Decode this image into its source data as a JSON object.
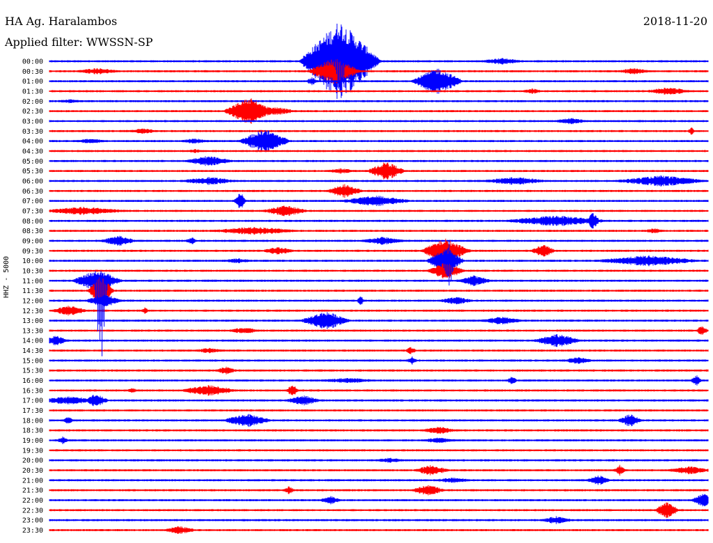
{
  "header": {
    "station": "HA Ag. Haralambos",
    "filter": "Applied filter: WWSSN-SP",
    "date": "2018-11-20"
  },
  "axis": {
    "ylabel": "HHZ - 5000"
  },
  "colors": {
    "trace_a": "#0000ff",
    "trace_b": "#ff0000",
    "background": "#ffffff",
    "text": "#000000"
  },
  "chart_data": {
    "type": "line",
    "time_labels": [
      "00:00",
      "00:30",
      "01:00",
      "01:30",
      "02:00",
      "02:30",
      "03:00",
      "03:30",
      "04:00",
      "04:30",
      "05:00",
      "05:30",
      "06:00",
      "06:30",
      "07:00",
      "07:30",
      "08:00",
      "08:30",
      "09:00",
      "09:30",
      "10:00",
      "10:30",
      "11:00",
      "11:30",
      "12:00",
      "12:30",
      "13:00",
      "13:30",
      "14:00",
      "14:30",
      "15:00",
      "15:30",
      "16:00",
      "16:30",
      "17:00",
      "17:30",
      "18:00",
      "18:30",
      "19:00",
      "19:30",
      "20:00",
      "20:30",
      "21:00",
      "21:30",
      "22:00",
      "22:30",
      "23:00",
      "23:30"
    ]
  }
}
